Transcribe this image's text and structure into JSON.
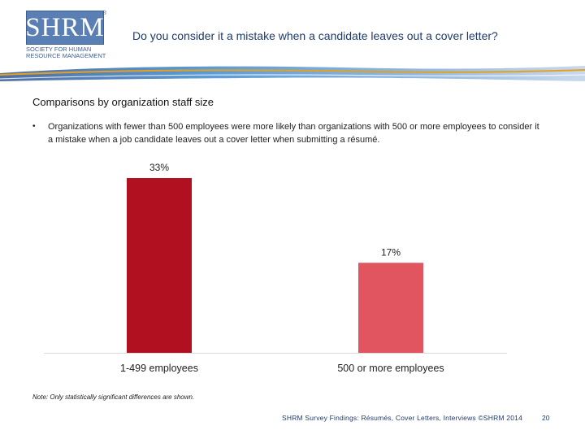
{
  "logo": {
    "wordmark": "SHRM",
    "registered": "®",
    "tagline_1": "SOCIETY FOR HUMAN",
    "tagline_2": "RESOURCE MANAGEMENT"
  },
  "header": {
    "title": "Do you consider it a mistake when a candidate leaves out a cover letter?"
  },
  "section": {
    "subtitle": "Comparisons by organization staff size",
    "bullet_symbol": "•",
    "bullet_text": "Organizations with fewer than 500 employees were more likely than organizations with 500 or more employees to consider it a mistake when a job candidate leaves out a cover letter when submitting a résumé."
  },
  "chart_data": {
    "type": "bar",
    "categories": [
      "1-499 employees",
      "500 or more employees"
    ],
    "values": [
      33,
      17
    ],
    "value_labels": [
      "33%",
      "17%"
    ],
    "colors": [
      "#b01020",
      "#e05560"
    ],
    "title": "",
    "xlabel": "",
    "ylabel": "",
    "ylim": [
      0,
      35
    ],
    "grid": false,
    "legend": "none"
  },
  "footer": {
    "note": "Note: Only statistically significant differences are shown.",
    "source": "SHRM Survey Findings: Résumés, Cover Letters, Interviews ©SHRM 2014",
    "page": "20"
  }
}
